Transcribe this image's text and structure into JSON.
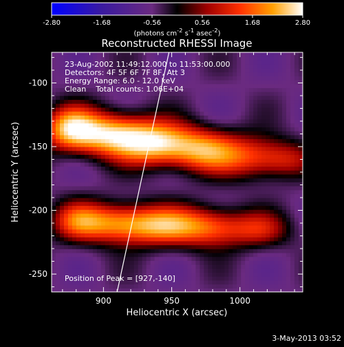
{
  "chart_data": {
    "type": "heatmap",
    "title": "Reconstructed RHESSI Image",
    "xlabel": "Heliocentric X (arcsec)",
    "ylabel": "Heliocentric Y (arcsec)",
    "xlim": [
      862,
      1046
    ],
    "ylim": [
      -264,
      -76
    ],
    "xticks": [
      900,
      950,
      1000
    ],
    "yticks": [
      -100,
      -150,
      -200,
      -250
    ],
    "colorbar": {
      "min": -2.8,
      "max": 2.8,
      "ticks": [
        "-2.80",
        "-1.68",
        "-0.56",
        "0.56",
        "1.68",
        "2.80"
      ],
      "label_html": "(photons cm<sup>-2</sup> s<sup>-1</sup> asec<sup>-2</sup>)"
    },
    "annotations": [
      "23-Aug-2002 11:49:12.000 to 11:53:00.000",
      "Detectors: 4F 5F 6F 7F 8F, Att 3",
      "Energy Range: 6.0 - 12.0 keV",
      "Clean    Total counts: 1.06E+04"
    ],
    "peak_label": "Position of Peak = [927,-140]",
    "peak": [
      927,
      -140
    ],
    "limb_line": {
      "x": [
        910,
        948
      ],
      "y": [
        -264,
        -76
      ]
    },
    "sources": [
      {
        "x": 875,
        "y": -135,
        "amp": 2.3,
        "sx": 14,
        "sy": 12
      },
      {
        "x": 905,
        "y": -140,
        "amp": 2.8,
        "sx": 22,
        "sy": 12
      },
      {
        "x": 940,
        "y": -148,
        "amp": 2.6,
        "sx": 20,
        "sy": 12
      },
      {
        "x": 975,
        "y": -153,
        "amp": 2.1,
        "sx": 18,
        "sy": 12
      },
      {
        "x": 1010,
        "y": -158,
        "amp": 1.6,
        "sx": 18,
        "sy": 12
      },
      {
        "x": 1035,
        "y": -160,
        "amp": 1.0,
        "sx": 14,
        "sy": 10
      },
      {
        "x": 880,
        "y": -208,
        "amp": 1.6,
        "sx": 14,
        "sy": 11
      },
      {
        "x": 910,
        "y": -210,
        "amp": 2.2,
        "sx": 20,
        "sy": 11
      },
      {
        "x": 945,
        "y": -212,
        "amp": 2.1,
        "sx": 20,
        "sy": 11
      },
      {
        "x": 980,
        "y": -213,
        "amp": 1.8,
        "sx": 18,
        "sy": 11
      },
      {
        "x": 1015,
        "y": -215,
        "amp": 1.3,
        "sx": 16,
        "sy": 10
      }
    ],
    "background": -0.6
  },
  "footer": {
    "date": "3-May-2013 03:52"
  }
}
